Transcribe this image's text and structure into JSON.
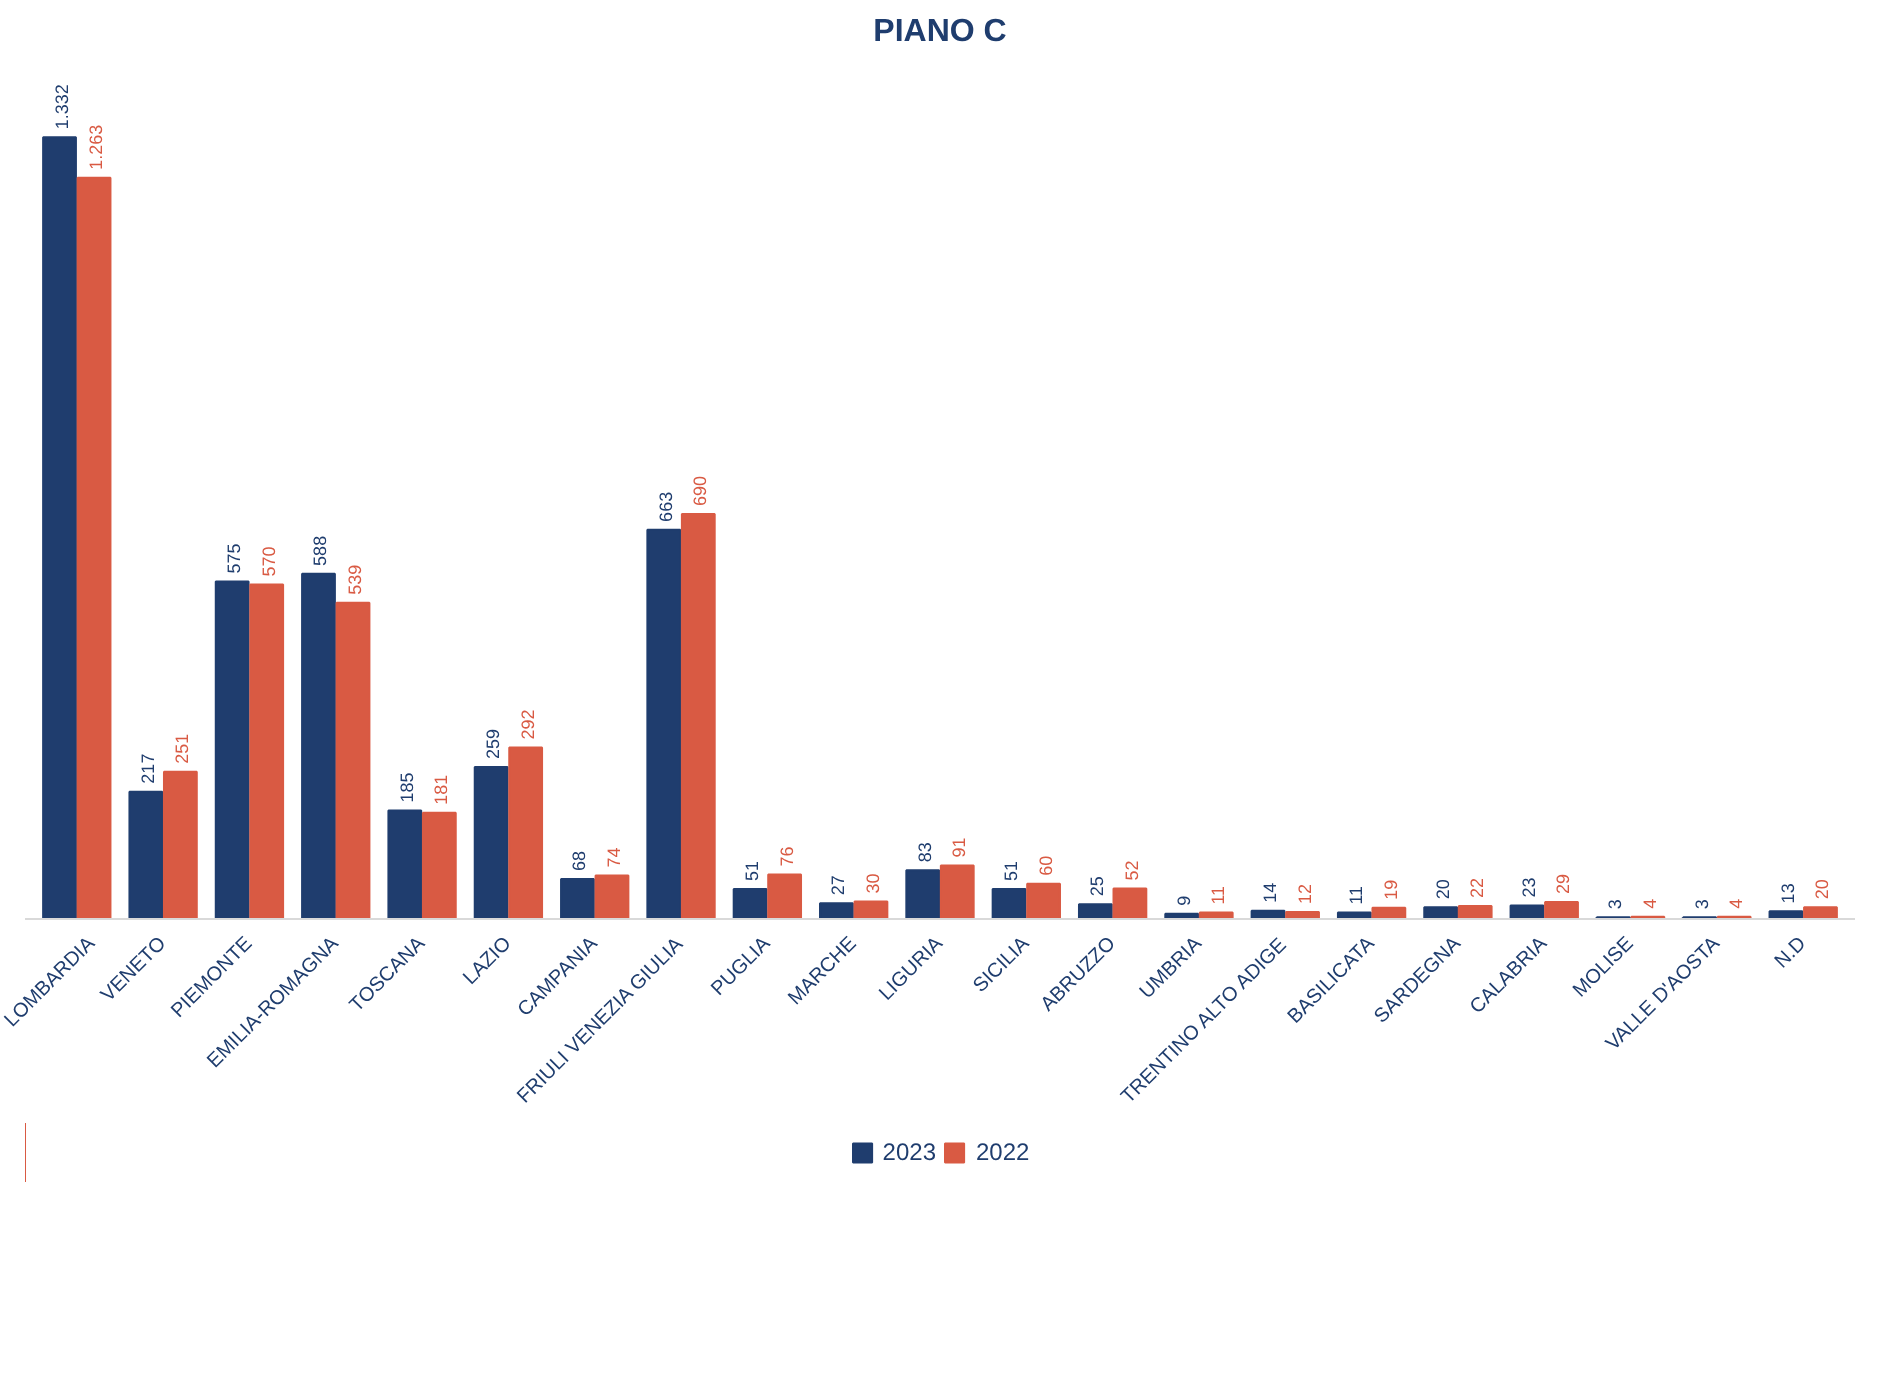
{
  "chart_data": {
    "type": "bar",
    "title": "PIANO C",
    "categories": [
      "LOMBARDIA",
      "VENETO",
      "PIEMONTE",
      "EMILIA-ROMAGNA",
      "TOSCANA",
      "LAZIO",
      "CAMPANIA",
      "FRIULI VENEZIA GIULIA",
      "PUGLIA",
      "MARCHE",
      "LIGURIA",
      "SICILIA",
      "ABRUZZO",
      "UMBRIA",
      "TRENTINO ALTO ADIGE",
      "BASILICATA",
      "SARDEGNA",
      "CALABRIA",
      "MOLISE",
      "VALLE D'AOSTA",
      "N.D"
    ],
    "series": [
      {
        "name": "2023",
        "color": "#1f3d6e",
        "values": [
          1332,
          217,
          575,
          588,
          185,
          259,
          68,
          663,
          51,
          27,
          83,
          51,
          25,
          9,
          14,
          11,
          20,
          23,
          3,
          3,
          13
        ],
        "value_labels": [
          "1.332",
          "217",
          "575",
          "588",
          "185",
          "259",
          "68",
          "663",
          "51",
          "27",
          "83",
          "51",
          "25",
          "9",
          "14",
          "11",
          "20",
          "23",
          "3",
          "3",
          "13"
        ]
      },
      {
        "name": "2022",
        "color": "#d95a43",
        "values": [
          1263,
          251,
          570,
          539,
          181,
          292,
          74,
          690,
          76,
          30,
          91,
          60,
          52,
          11,
          12,
          19,
          22,
          29,
          4,
          4,
          20
        ],
        "value_labels": [
          "1.263",
          "251",
          "570",
          "539",
          "181",
          "292",
          "74",
          "690",
          "76",
          "30",
          "91",
          "60",
          "52",
          "11",
          "12",
          "19",
          "22",
          "29",
          "4",
          "4",
          "20"
        ]
      }
    ],
    "legend": "bottom",
    "grid": false
  }
}
